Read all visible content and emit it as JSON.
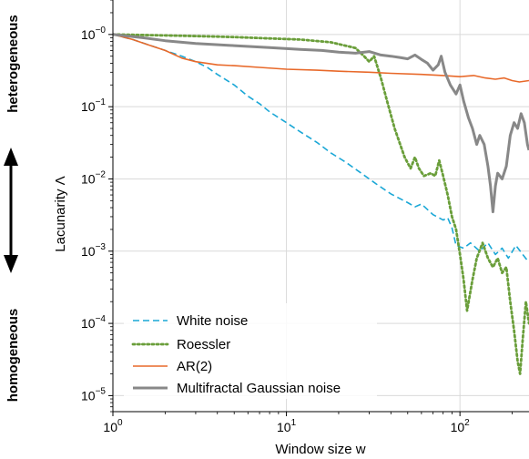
{
  "chart_data": {
    "type": "line",
    "xscale": "log",
    "yscale": "log",
    "xlabel": "Window size w",
    "ylabel": "Lacunarity Λ",
    "xlim": [
      1,
      250
    ],
    "ylim": [
      6e-06,
      3
    ],
    "grid": true,
    "legend_position": "bottom-left",
    "side_labels": {
      "top": "heterogeneous",
      "bottom": "homogeneous"
    },
    "xticks": [
      {
        "value": 1,
        "base": "10",
        "exp": "0"
      },
      {
        "value": 10,
        "base": "10",
        "exp": "1"
      },
      {
        "value": 100,
        "base": "10",
        "exp": "2"
      }
    ],
    "yticks": [
      {
        "value": 1,
        "base": "10",
        "exp": "−0"
      },
      {
        "value": 0.1,
        "base": "10",
        "exp": "−1"
      },
      {
        "value": 0.01,
        "base": "10",
        "exp": "−2"
      },
      {
        "value": 0.001,
        "base": "10",
        "exp": "−3"
      },
      {
        "value": 0.0001,
        "base": "10",
        "exp": "−4"
      },
      {
        "value": 1e-05,
        "base": "10",
        "exp": "−5"
      }
    ],
    "series": [
      {
        "name": "White noise",
        "color": "#1aa7d6",
        "style": "dashed",
        "width": 1.6,
        "points": [
          [
            1,
            1.0
          ],
          [
            1.3,
            0.85
          ],
          [
            1.6,
            0.72
          ],
          [
            2,
            0.6
          ],
          [
            2.5,
            0.5
          ],
          [
            3,
            0.42
          ],
          [
            3.5,
            0.35
          ],
          [
            4,
            0.28
          ],
          [
            5,
            0.2
          ],
          [
            6,
            0.14
          ],
          [
            7,
            0.11
          ],
          [
            8,
            0.085
          ],
          [
            10,
            0.06
          ],
          [
            12,
            0.045
          ],
          [
            15,
            0.032
          ],
          [
            18,
            0.023
          ],
          [
            22,
            0.017
          ],
          [
            27,
            0.012
          ],
          [
            33,
            0.0085
          ],
          [
            40,
            0.0062
          ],
          [
            50,
            0.0047
          ],
          [
            55,
            0.0041
          ],
          [
            60,
            0.0045
          ],
          [
            70,
            0.0032
          ],
          [
            80,
            0.0027
          ],
          [
            85,
            0.0029
          ],
          [
            90,
            0.0021
          ],
          [
            95,
            0.0012
          ],
          [
            105,
            0.0011
          ],
          [
            115,
            0.0013
          ],
          [
            130,
            0.001
          ],
          [
            145,
            0.0013
          ],
          [
            160,
            0.0009
          ],
          [
            175,
            0.0011
          ],
          [
            190,
            0.0008
          ],
          [
            210,
            0.0012
          ],
          [
            230,
            0.0009
          ],
          [
            250,
            0.0007
          ]
        ]
      },
      {
        "name": "Roessler",
        "color": "#6a9e3a",
        "style": "dotted",
        "width": 2.8,
        "points": [
          [
            1,
            1.0
          ],
          [
            2,
            0.97
          ],
          [
            3,
            0.95
          ],
          [
            5,
            0.92
          ],
          [
            8,
            0.88
          ],
          [
            12,
            0.85
          ],
          [
            18,
            0.78
          ],
          [
            25,
            0.65
          ],
          [
            28,
            0.5
          ],
          [
            30,
            0.42
          ],
          [
            32,
            0.5
          ],
          [
            35,
            0.25
          ],
          [
            38,
            0.12
          ],
          [
            42,
            0.05
          ],
          [
            48,
            0.02
          ],
          [
            52,
            0.014
          ],
          [
            55,
            0.02
          ],
          [
            58,
            0.014
          ],
          [
            62,
            0.011
          ],
          [
            68,
            0.012
          ],
          [
            72,
            0.011
          ],
          [
            76,
            0.018
          ],
          [
            80,
            0.011
          ],
          [
            85,
            0.006
          ],
          [
            90,
            0.003
          ],
          [
            95,
            0.002
          ],
          [
            100,
            0.0009
          ],
          [
            105,
            0.0004
          ],
          [
            110,
            0.00015
          ],
          [
            118,
            0.0004
          ],
          [
            125,
            0.0008
          ],
          [
            135,
            0.0013
          ],
          [
            145,
            0.0008
          ],
          [
            155,
            0.0006
          ],
          [
            165,
            0.0008
          ],
          [
            175,
            0.0005
          ],
          [
            185,
            0.0006
          ],
          [
            195,
            0.0002
          ],
          [
            205,
            8e-05
          ],
          [
            215,
            3e-05
          ],
          [
            222,
            2e-05
          ],
          [
            230,
            6e-05
          ],
          [
            240,
            0.0002
          ],
          [
            250,
            0.0001
          ]
        ]
      },
      {
        "name": "AR(2)",
        "color": "#e8692a",
        "style": "solid",
        "width": 1.6,
        "points": [
          [
            1,
            1.0
          ],
          [
            1.3,
            0.85
          ],
          [
            1.6,
            0.72
          ],
          [
            2,
            0.6
          ],
          [
            2.5,
            0.47
          ],
          [
            3,
            0.42
          ],
          [
            4,
            0.38
          ],
          [
            5,
            0.37
          ],
          [
            7,
            0.35
          ],
          [
            10,
            0.33
          ],
          [
            15,
            0.32
          ],
          [
            20,
            0.31
          ],
          [
            30,
            0.3
          ],
          [
            40,
            0.29
          ],
          [
            60,
            0.28
          ],
          [
            80,
            0.27
          ],
          [
            100,
            0.26
          ],
          [
            120,
            0.27
          ],
          [
            140,
            0.25
          ],
          [
            160,
            0.24
          ],
          [
            180,
            0.25
          ],
          [
            200,
            0.23
          ],
          [
            220,
            0.22
          ],
          [
            250,
            0.23
          ]
        ]
      },
      {
        "name": "Multifractal Gaussian noise",
        "color": "#888888",
        "style": "solid",
        "width": 3,
        "points": [
          [
            1,
            1.0
          ],
          [
            1.5,
            0.9
          ],
          [
            2,
            0.82
          ],
          [
            3,
            0.75
          ],
          [
            5,
            0.7
          ],
          [
            8,
            0.66
          ],
          [
            12,
            0.62
          ],
          [
            16,
            0.6
          ],
          [
            20,
            0.57
          ],
          [
            25,
            0.55
          ],
          [
            30,
            0.58
          ],
          [
            35,
            0.52
          ],
          [
            40,
            0.5
          ],
          [
            45,
            0.48
          ],
          [
            50,
            0.46
          ],
          [
            55,
            0.52
          ],
          [
            60,
            0.45
          ],
          [
            65,
            0.4
          ],
          [
            70,
            0.32
          ],
          [
            75,
            0.38
          ],
          [
            78,
            0.5
          ],
          [
            82,
            0.3
          ],
          [
            88,
            0.2
          ],
          [
            95,
            0.15
          ],
          [
            100,
            0.2
          ],
          [
            105,
            0.12
          ],
          [
            112,
            0.07
          ],
          [
            118,
            0.05
          ],
          [
            125,
            0.03
          ],
          [
            130,
            0.04
          ],
          [
            138,
            0.03
          ],
          [
            145,
            0.015
          ],
          [
            150,
            0.008
          ],
          [
            155,
            0.0035
          ],
          [
            160,
            0.008
          ],
          [
            165,
            0.012
          ],
          [
            175,
            0.01
          ],
          [
            185,
            0.015
          ],
          [
            195,
            0.04
          ],
          [
            205,
            0.06
          ],
          [
            215,
            0.05
          ],
          [
            225,
            0.08
          ],
          [
            235,
            0.06
          ],
          [
            245,
            0.03
          ],
          [
            250,
            0.025
          ]
        ]
      }
    ]
  }
}
